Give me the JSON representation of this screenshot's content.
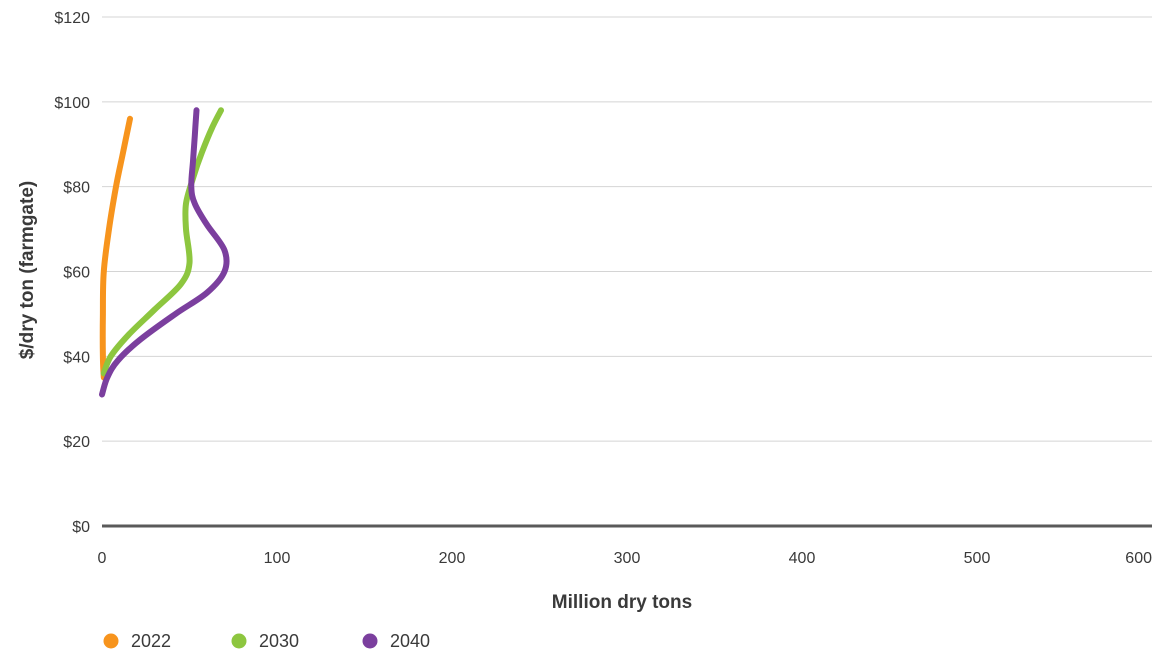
{
  "chart_data": {
    "type": "line",
    "xlabel": "Million dry tons",
    "ylabel": "$/dry ton (farmgate)",
    "xlim": [
      0,
      600
    ],
    "ylim": [
      0,
      120
    ],
    "x_ticks": [
      "0",
      "100",
      "200",
      "300",
      "400",
      "500",
      "600"
    ],
    "y_ticks": [
      "$0",
      "$20",
      "$40",
      "$60",
      "$80",
      "$100",
      "$120"
    ],
    "grid": "horizontal",
    "legend_position": "bottom-left",
    "series": [
      {
        "name": "2022",
        "color": "#f7941d",
        "points": [
          [
            1,
            35
          ],
          [
            0.5,
            40
          ],
          [
            0.5,
            50
          ],
          [
            1,
            60
          ],
          [
            4,
            70
          ],
          [
            8,
            80
          ],
          [
            12,
            88
          ],
          [
            16,
            96
          ]
        ]
      },
      {
        "name": "2030",
        "color": "#8dc63f",
        "points": [
          [
            1,
            36
          ],
          [
            5,
            40
          ],
          [
            15,
            45
          ],
          [
            30,
            51
          ],
          [
            45,
            57
          ],
          [
            50,
            62
          ],
          [
            48,
            70
          ],
          [
            48,
            76
          ],
          [
            52,
            82
          ],
          [
            57,
            88
          ],
          [
            63,
            94
          ],
          [
            68,
            98
          ]
        ]
      },
      {
        "name": "2040",
        "color": "#7b3f9e",
        "points": [
          [
            0,
            31
          ],
          [
            3,
            35
          ],
          [
            9,
            39
          ],
          [
            22,
            44
          ],
          [
            42,
            50
          ],
          [
            60,
            55
          ],
          [
            70,
            60
          ],
          [
            70,
            65
          ],
          [
            60,
            71
          ],
          [
            53,
            76
          ],
          [
            51,
            80
          ],
          [
            52,
            86
          ],
          [
            53,
            92
          ],
          [
            54,
            98
          ]
        ]
      }
    ]
  }
}
